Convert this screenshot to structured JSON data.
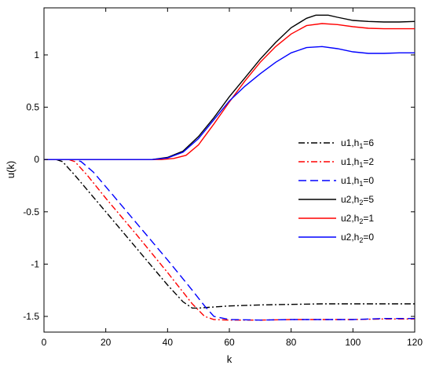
{
  "chart_data": {
    "type": "line",
    "title": "",
    "xlabel": "k",
    "ylabel": "u(k)",
    "xlim": [
      0,
      120
    ],
    "ylim": [
      -1.65,
      1.45
    ],
    "xticks": [
      0,
      20,
      40,
      60,
      80,
      100,
      120
    ],
    "yticks": [
      -1.5,
      -1,
      -0.5,
      0,
      0.5,
      1
    ],
    "ytick_labels": [
      "-1.5",
      "-1",
      "-0.5",
      "0",
      "0.5",
      "1"
    ],
    "grid": false,
    "legend_position": "center-right",
    "series": [
      {
        "name": "u1,h",
        "sub": "1",
        "value": "=6",
        "color": "#000000",
        "dash": "8,3,2,3",
        "x": [
          0,
          4,
          6,
          10,
          20,
          30,
          40,
          45,
          48,
          50,
          55,
          60,
          70,
          80,
          90,
          100,
          110,
          120
        ],
        "y": [
          0,
          0,
          -0.02,
          -0.15,
          -0.5,
          -0.85,
          -1.2,
          -1.36,
          -1.42,
          -1.42,
          -1.41,
          -1.4,
          -1.39,
          -1.385,
          -1.38,
          -1.38,
          -1.38,
          -1.38
        ]
      },
      {
        "name": "u1,h",
        "sub": "1",
        "value": "=2",
        "color": "#ff0000",
        "dash": "8,3,2,3",
        "x": [
          0,
          8,
          10,
          14,
          20,
          30,
          40,
          48,
          52,
          55,
          60,
          70,
          80,
          90,
          100,
          110,
          120
        ],
        "y": [
          0,
          0,
          -0.02,
          -0.15,
          -0.37,
          -0.72,
          -1.08,
          -1.38,
          -1.5,
          -1.53,
          -1.535,
          -1.535,
          -1.53,
          -1.53,
          -1.53,
          -1.525,
          -1.525
        ]
      },
      {
        "name": "u1,h",
        "sub": "1",
        "value": "=0",
        "color": "#0000ff",
        "dash": "10,5",
        "x": [
          0,
          10,
          12,
          16,
          20,
          30,
          40,
          48,
          52,
          55,
          60,
          70,
          80,
          90,
          100,
          110,
          120
        ],
        "y": [
          0,
          0,
          -0.02,
          -0.12,
          -0.26,
          -0.61,
          -0.96,
          -1.25,
          -1.4,
          -1.5,
          -1.53,
          -1.535,
          -1.53,
          -1.53,
          -1.53,
          -1.52,
          -1.52
        ]
      },
      {
        "name": "u2,h",
        "sub": "2",
        "value": "=5",
        "color": "#000000",
        "dash": "",
        "x": [
          0,
          35,
          40,
          45,
          50,
          55,
          60,
          65,
          70,
          75,
          80,
          85,
          88,
          92,
          95,
          100,
          105,
          110,
          115,
          120
        ],
        "y": [
          0,
          0,
          0.02,
          0.08,
          0.22,
          0.4,
          0.6,
          0.78,
          0.96,
          1.12,
          1.26,
          1.35,
          1.38,
          1.38,
          1.36,
          1.33,
          1.32,
          1.315,
          1.315,
          1.32
        ]
      },
      {
        "name": "u2,h",
        "sub": "2",
        "value": "=1",
        "color": "#ff0000",
        "dash": "",
        "x": [
          0,
          38,
          42,
          46,
          50,
          55,
          60,
          65,
          70,
          75,
          80,
          85,
          90,
          95,
          100,
          105,
          110,
          115,
          120
        ],
        "y": [
          0,
          0,
          0.01,
          0.04,
          0.14,
          0.34,
          0.55,
          0.75,
          0.93,
          1.08,
          1.2,
          1.28,
          1.3,
          1.29,
          1.27,
          1.255,
          1.25,
          1.25,
          1.25
        ]
      },
      {
        "name": "u2,h",
        "sub": "2",
        "value": "=0",
        "color": "#0000ff",
        "dash": "",
        "x": [
          0,
          35,
          40,
          45,
          50,
          55,
          60,
          65,
          70,
          75,
          80,
          85,
          90,
          95,
          100,
          105,
          110,
          115,
          120
        ],
        "y": [
          0,
          0,
          0.015,
          0.07,
          0.2,
          0.38,
          0.56,
          0.7,
          0.82,
          0.93,
          1.02,
          1.07,
          1.08,
          1.06,
          1.03,
          1.015,
          1.015,
          1.02,
          1.02
        ]
      }
    ]
  }
}
